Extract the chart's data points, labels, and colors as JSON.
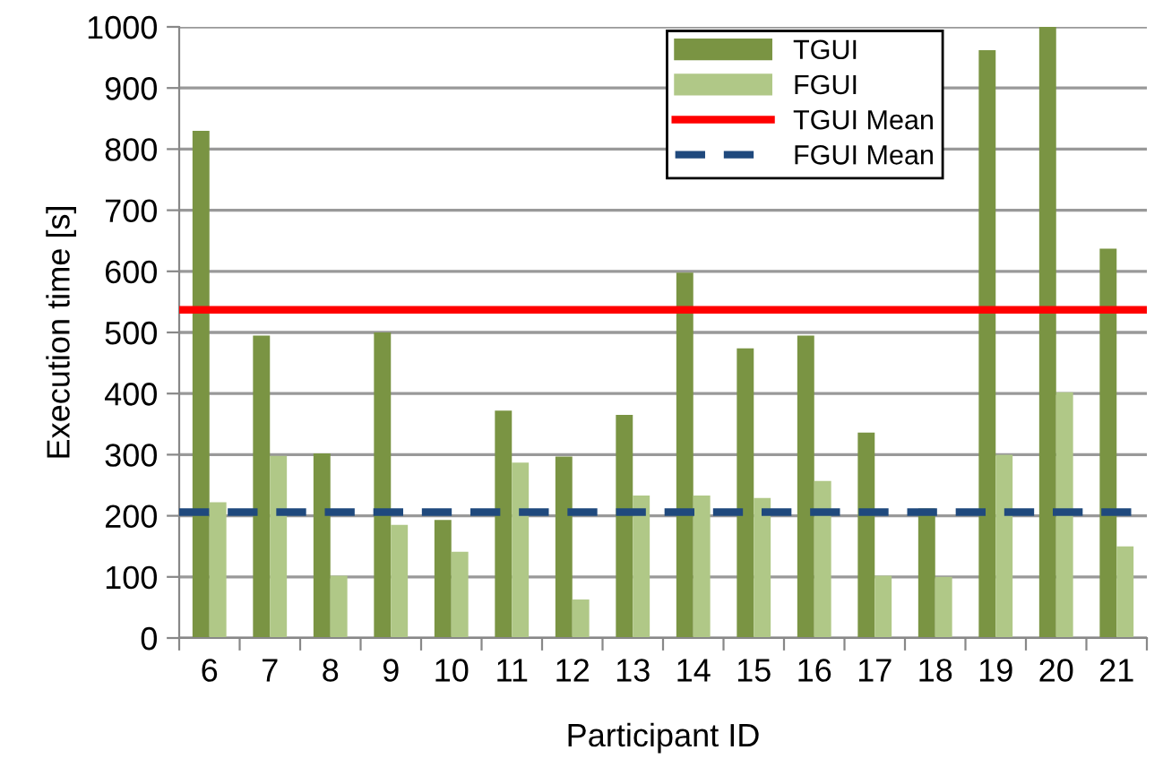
{
  "chart_data": {
    "type": "bar",
    "xlabel": "Participant ID",
    "ylabel": "Execution time [s]",
    "categories": [
      "6",
      "7",
      "8",
      "9",
      "10",
      "11",
      "12",
      "13",
      "14",
      "15",
      "16",
      "17",
      "18",
      "19",
      "20",
      "21"
    ],
    "series": [
      {
        "name": "TGUI",
        "color": "#7a9443",
        "values": [
          830,
          495,
          302,
          500,
          193,
          372,
          297,
          365,
          598,
          474,
          495,
          336,
          212,
          962,
          1000,
          637
        ]
      },
      {
        "name": "FGUI",
        "color": "#b0c887",
        "values": [
          222,
          298,
          102,
          185,
          141,
          287,
          63,
          233,
          233,
          229,
          257,
          102,
          100,
          300,
          402,
          150
        ]
      }
    ],
    "ref_lines": [
      {
        "axis": "y",
        "value": 537,
        "label": "TGUI Mean",
        "color": "#ff0000",
        "line_style": "solid"
      },
      {
        "axis": "y",
        "value": 206,
        "label": "FGUI Mean",
        "color": "#1f497d",
        "line_style": "dashed"
      }
    ],
    "ylim": [
      0,
      1000
    ],
    "yticks": [
      0,
      100,
      200,
      300,
      400,
      500,
      600,
      700,
      800,
      900,
      1000
    ],
    "grid": "y",
    "legend": "top right"
  }
}
